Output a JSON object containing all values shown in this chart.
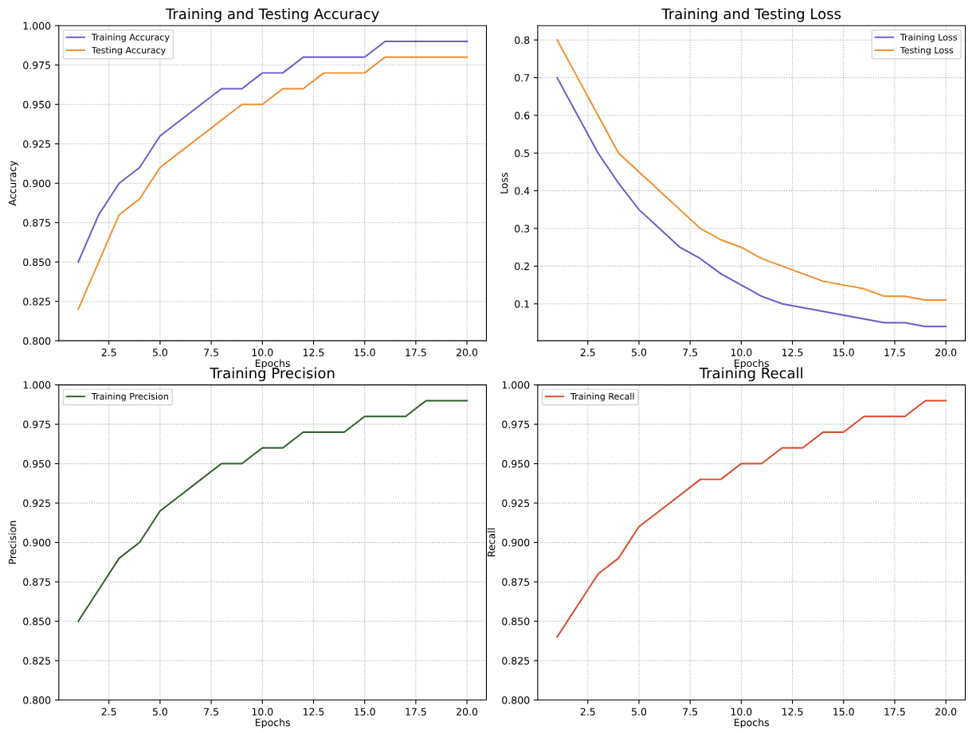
{
  "chart_data": [
    {
      "type": "line",
      "title": "Training and Testing Accuracy",
      "xlabel": "Epochs",
      "ylabel": "Accuracy",
      "x": [
        1,
        2,
        3,
        4,
        5,
        6,
        7,
        8,
        9,
        10,
        11,
        12,
        13,
        14,
        15,
        16,
        17,
        18,
        19,
        20
      ],
      "series": [
        {
          "name": "Training Accuracy",
          "color": "#6a5acd",
          "values": [
            0.85,
            0.88,
            0.9,
            0.91,
            0.93,
            0.94,
            0.95,
            0.96,
            0.96,
            0.97,
            0.97,
            0.98,
            0.98,
            0.98,
            0.98,
            0.99,
            0.99,
            0.99,
            0.99,
            0.99
          ]
        },
        {
          "name": "Testing Accuracy",
          "color": "#f28e2b",
          "values": [
            0.82,
            0.85,
            0.88,
            0.89,
            0.91,
            0.92,
            0.93,
            0.94,
            0.95,
            0.95,
            0.96,
            0.96,
            0.97,
            0.97,
            0.97,
            0.98,
            0.98,
            0.98,
            0.98,
            0.98
          ]
        }
      ],
      "xlim": [
        0.05,
        20.95
      ],
      "xticks": [
        {
          "value": 2.5,
          "label": "2.5"
        },
        {
          "value": 5,
          "label": "5.0"
        },
        {
          "value": 7.5,
          "label": "7.5"
        },
        {
          "value": 10,
          "label": "10.0"
        },
        {
          "value": 12.5,
          "label": "12.5"
        },
        {
          "value": 15,
          "label": "15.0"
        },
        {
          "value": 17.5,
          "label": "17.5"
        },
        {
          "value": 20,
          "label": "20.0"
        }
      ],
      "ylim": [
        0.8,
        1.0
      ],
      "yticks": [
        {
          "value": 0.8,
          "label": "0.800"
        },
        {
          "value": 0.825,
          "label": "0.825"
        },
        {
          "value": 0.85,
          "label": "0.850"
        },
        {
          "value": 0.875,
          "label": "0.875"
        },
        {
          "value": 0.9,
          "label": "0.900"
        },
        {
          "value": 0.925,
          "label": "0.925"
        },
        {
          "value": 0.95,
          "label": "0.950"
        },
        {
          "value": 0.975,
          "label": "0.975"
        },
        {
          "value": 1.0,
          "label": "1.000"
        }
      ],
      "grid": true,
      "legend": "top left",
      "line_style": "solid"
    },
    {
      "type": "line",
      "title": "Training and Testing Loss",
      "xlabel": "Epochs",
      "ylabel": "Loss",
      "x": [
        1,
        2,
        3,
        4,
        5,
        6,
        7,
        8,
        9,
        10,
        11,
        12,
        13,
        14,
        15,
        16,
        17,
        18,
        19,
        20
      ],
      "series": [
        {
          "name": "Training Loss",
          "color": "#6a5acd",
          "values": [
            0.7,
            0.6,
            0.5,
            0.42,
            0.35,
            0.3,
            0.25,
            0.22,
            0.18,
            0.15,
            0.12,
            0.1,
            0.09,
            0.08,
            0.07,
            0.06,
            0.05,
            0.05,
            0.04,
            0.04
          ]
        },
        {
          "name": "Testing Loss",
          "color": "#f28e2b",
          "values": [
            0.8,
            0.7,
            0.6,
            0.5,
            0.45,
            0.4,
            0.35,
            0.3,
            0.27,
            0.25,
            0.22,
            0.2,
            0.18,
            0.16,
            0.15,
            0.14,
            0.12,
            0.12,
            0.11,
            0.11
          ]
        }
      ],
      "xlim": [
        0.05,
        20.95
      ],
      "xticks": [
        {
          "value": 2.5,
          "label": "2.5"
        },
        {
          "value": 5,
          "label": "5.0"
        },
        {
          "value": 7.5,
          "label": "7.5"
        },
        {
          "value": 10,
          "label": "10.0"
        },
        {
          "value": 12.5,
          "label": "12.5"
        },
        {
          "value": 15,
          "label": "15.0"
        },
        {
          "value": 17.5,
          "label": "17.5"
        },
        {
          "value": 20,
          "label": "20.0"
        }
      ],
      "ylim": [
        0.002,
        0.838
      ],
      "yticks": [
        0.1,
        0.2,
        0.3,
        0.4,
        0.5,
        0.6,
        0.7,
        0.8
      ],
      "grid": true,
      "legend": "top right",
      "line_style": "solid"
    },
    {
      "type": "line",
      "title": "Training Precision",
      "xlabel": "Epochs",
      "ylabel": "Precision",
      "x": [
        1,
        2,
        3,
        4,
        5,
        6,
        7,
        8,
        9,
        10,
        11,
        12,
        13,
        14,
        15,
        16,
        17,
        18,
        19,
        20
      ],
      "series": [
        {
          "name": "Training Precision",
          "color": "#2e5e2a",
          "values": [
            0.85,
            0.87,
            0.89,
            0.9,
            0.92,
            0.93,
            0.94,
            0.95,
            0.95,
            0.96,
            0.96,
            0.97,
            0.97,
            0.97,
            0.98,
            0.98,
            0.98,
            0.99,
            0.99,
            0.99
          ]
        }
      ],
      "xlim": [
        0.05,
        20.95
      ],
      "xticks": [
        {
          "value": 2.5,
          "label": "2.5"
        },
        {
          "value": 5,
          "label": "5.0"
        },
        {
          "value": 7.5,
          "label": "7.5"
        },
        {
          "value": 10,
          "label": "10.0"
        },
        {
          "value": 12.5,
          "label": "12.5"
        },
        {
          "value": 15,
          "label": "15.0"
        },
        {
          "value": 17.5,
          "label": "17.5"
        },
        {
          "value": 20,
          "label": "20.0"
        }
      ],
      "ylim": [
        0.8,
        1.0
      ],
      "yticks": [
        {
          "value": 0.8,
          "label": "0.800"
        },
        {
          "value": 0.825,
          "label": "0.825"
        },
        {
          "value": 0.85,
          "label": "0.850"
        },
        {
          "value": 0.875,
          "label": "0.875"
        },
        {
          "value": 0.9,
          "label": "0.900"
        },
        {
          "value": 0.925,
          "label": "0.925"
        },
        {
          "value": 0.95,
          "label": "0.950"
        },
        {
          "value": 0.975,
          "label": "0.975"
        },
        {
          "value": 1.0,
          "label": "1.000"
        }
      ],
      "grid": true,
      "legend": "top left",
      "line_style": "solid"
    },
    {
      "type": "line",
      "title": "Training Recall",
      "xlabel": "Epochs",
      "ylabel": "Recall",
      "x": [
        1,
        2,
        3,
        4,
        5,
        6,
        7,
        8,
        9,
        10,
        11,
        12,
        13,
        14,
        15,
        16,
        17,
        18,
        19,
        20
      ],
      "series": [
        {
          "name": "Training Recall",
          "color": "#d9482b",
          "values": [
            0.84,
            0.86,
            0.88,
            0.89,
            0.91,
            0.92,
            0.93,
            0.94,
            0.94,
            0.95,
            0.95,
            0.96,
            0.96,
            0.97,
            0.97,
            0.98,
            0.98,
            0.98,
            0.99,
            0.99
          ]
        }
      ],
      "xlim": [
        0.05,
        20.95
      ],
      "xticks": [
        {
          "value": 2.5,
          "label": "2.5"
        },
        {
          "value": 5,
          "label": "5.0"
        },
        {
          "value": 7.5,
          "label": "7.5"
        },
        {
          "value": 10,
          "label": "10.0"
        },
        {
          "value": 12.5,
          "label": "12.5"
        },
        {
          "value": 15,
          "label": "15.0"
        },
        {
          "value": 17.5,
          "label": "17.5"
        },
        {
          "value": 20,
          "label": "20.0"
        }
      ],
      "ylim": [
        0.8,
        1.0
      ],
      "yticks": [
        {
          "value": 0.8,
          "label": "0.800"
        },
        {
          "value": 0.825,
          "label": "0.825"
        },
        {
          "value": 0.85,
          "label": "0.850"
        },
        {
          "value": 0.875,
          "label": "0.875"
        },
        {
          "value": 0.9,
          "label": "0.900"
        },
        {
          "value": 0.925,
          "label": "0.925"
        },
        {
          "value": 0.95,
          "label": "0.950"
        },
        {
          "value": 0.975,
          "label": "0.975"
        },
        {
          "value": 1.0,
          "label": "1.000"
        }
      ],
      "grid": true,
      "legend": "top left",
      "line_style": "solid"
    }
  ]
}
